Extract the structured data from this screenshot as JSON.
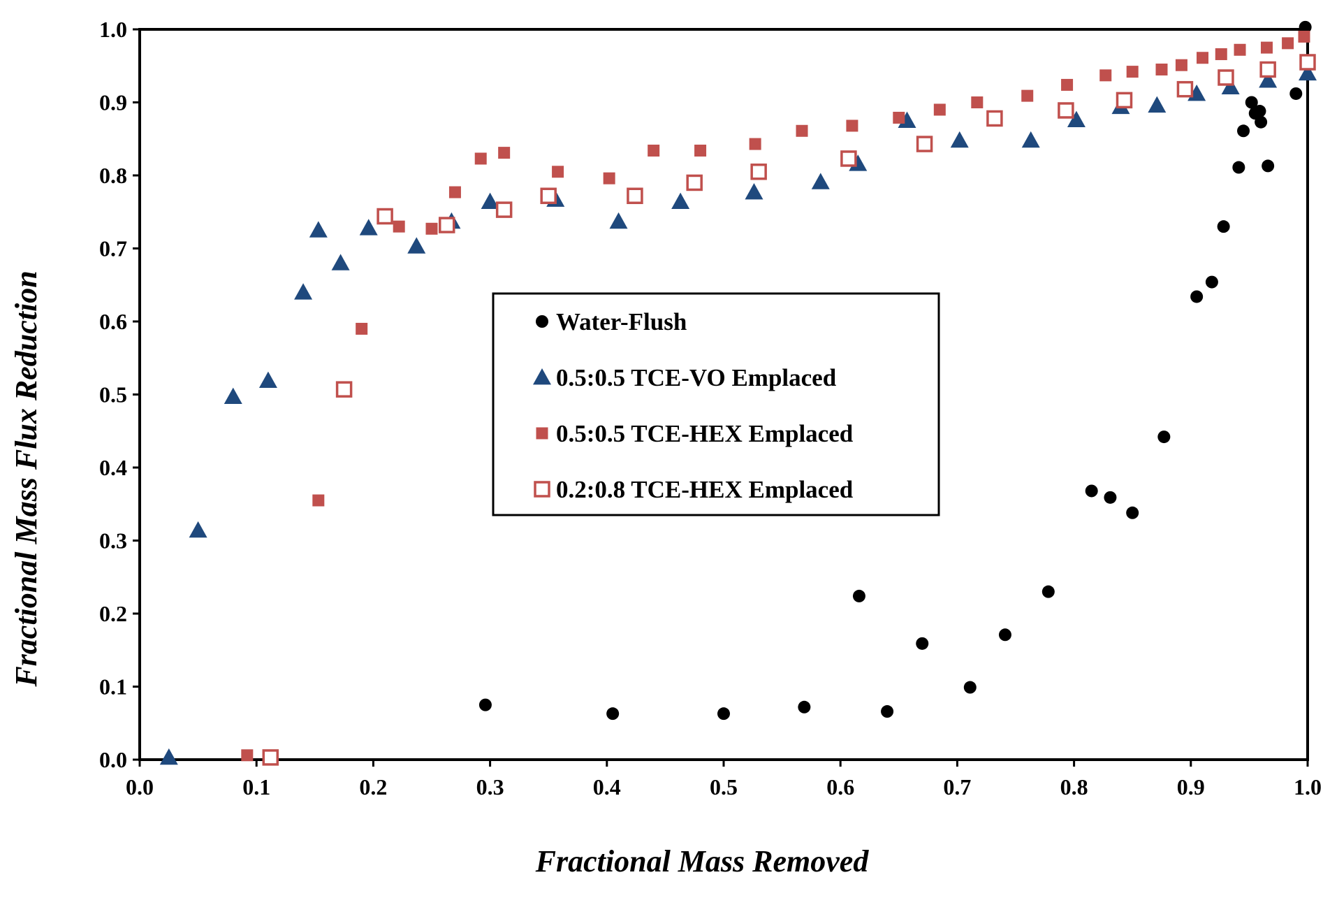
{
  "chart_data": {
    "type": "scatter",
    "title": "",
    "xlabel": "Fractional Mass Removed",
    "ylabel": "Fractional Mass Flux Reduction",
    "xlim": [
      0.0,
      1.0
    ],
    "ylim": [
      0.0,
      1.0
    ],
    "xticks": [
      "0.0",
      "0.1",
      "0.2",
      "0.3",
      "0.4",
      "0.5",
      "0.6",
      "0.7",
      "0.8",
      "0.9",
      "1.0"
    ],
    "yticks": [
      "0.0",
      "0.1",
      "0.2",
      "0.3",
      "0.4",
      "0.5",
      "0.6",
      "0.7",
      "0.8",
      "0.9",
      "1.0"
    ],
    "grid": false,
    "legend_position": "center",
    "series": [
      {
        "name": "Water-Flush",
        "marker": "circle-filled",
        "color": "#000000",
        "points": [
          [
            0.296,
            0.075
          ],
          [
            0.405,
            0.063
          ],
          [
            0.5,
            0.063
          ],
          [
            0.569,
            0.072
          ],
          [
            0.616,
            0.224
          ],
          [
            0.64,
            0.066
          ],
          [
            0.67,
            0.159
          ],
          [
            0.711,
            0.099
          ],
          [
            0.741,
            0.171
          ],
          [
            0.778,
            0.23
          ],
          [
            0.815,
            0.368
          ],
          [
            0.831,
            0.359
          ],
          [
            0.85,
            0.338
          ],
          [
            0.877,
            0.442
          ],
          [
            0.905,
            0.634
          ],
          [
            0.918,
            0.654
          ],
          [
            0.928,
            0.73
          ],
          [
            0.941,
            0.811
          ],
          [
            0.945,
            0.861
          ],
          [
            0.952,
            0.9
          ],
          [
            0.955,
            0.885
          ],
          [
            0.959,
            0.888
          ],
          [
            0.96,
            0.873
          ],
          [
            0.966,
            0.813
          ],
          [
            0.99,
            0.912
          ],
          [
            0.998,
            1.003
          ]
        ]
      },
      {
        "name": "0.5:0.5 TCE-VO Emplaced",
        "marker": "triangle-filled",
        "color": "#1f497d",
        "points": [
          [
            0.025,
            0.003
          ],
          [
            0.05,
            0.314
          ],
          [
            0.08,
            0.497
          ],
          [
            0.11,
            0.519
          ],
          [
            0.14,
            0.64
          ],
          [
            0.153,
            0.725
          ],
          [
            0.172,
            0.68
          ],
          [
            0.196,
            0.728
          ],
          [
            0.237,
            0.703
          ],
          [
            0.267,
            0.737
          ],
          [
            0.3,
            0.764
          ],
          [
            0.356,
            0.767
          ],
          [
            0.41,
            0.737
          ],
          [
            0.463,
            0.764
          ],
          [
            0.526,
            0.777
          ],
          [
            0.583,
            0.791
          ],
          [
            0.615,
            0.816
          ],
          [
            0.657,
            0.875
          ],
          [
            0.702,
            0.848
          ],
          [
            0.763,
            0.848
          ],
          [
            0.802,
            0.876
          ],
          [
            0.84,
            0.894
          ],
          [
            0.871,
            0.896
          ],
          [
            0.905,
            0.912
          ],
          [
            0.934,
            0.921
          ],
          [
            0.966,
            0.93
          ],
          [
            1.0,
            0.94
          ]
        ]
      },
      {
        "name": "0.5:0.5 TCE-HEX Emplaced",
        "marker": "square-filled",
        "color": "#c0504d",
        "points": [
          [
            0.092,
            0.006
          ],
          [
            0.153,
            0.355
          ],
          [
            0.19,
            0.59
          ],
          [
            0.222,
            0.73
          ],
          [
            0.25,
            0.727
          ],
          [
            0.27,
            0.777
          ],
          [
            0.292,
            0.823
          ],
          [
            0.312,
            0.831
          ],
          [
            0.358,
            0.805
          ],
          [
            0.402,
            0.796
          ],
          [
            0.44,
            0.834
          ],
          [
            0.48,
            0.834
          ],
          [
            0.527,
            0.843
          ],
          [
            0.567,
            0.861
          ],
          [
            0.61,
            0.868
          ],
          [
            0.65,
            0.879
          ],
          [
            0.685,
            0.89
          ],
          [
            0.717,
            0.9
          ],
          [
            0.76,
            0.909
          ],
          [
            0.794,
            0.924
          ],
          [
            0.827,
            0.937
          ],
          [
            0.85,
            0.942
          ],
          [
            0.875,
            0.945
          ],
          [
            0.892,
            0.951
          ],
          [
            0.91,
            0.961
          ],
          [
            0.926,
            0.966
          ],
          [
            0.942,
            0.972
          ],
          [
            0.965,
            0.975
          ],
          [
            0.983,
            0.981
          ],
          [
            0.997,
            0.99
          ]
        ]
      },
      {
        "name": "0.2:0.8 TCE-HEX Emplaced",
        "marker": "square-open",
        "color": "#c0504d",
        "points": [
          [
            0.112,
            0.003
          ],
          [
            0.175,
            0.507
          ],
          [
            0.21,
            0.744
          ],
          [
            0.263,
            0.732
          ],
          [
            0.312,
            0.753
          ],
          [
            0.35,
            0.772
          ],
          [
            0.424,
            0.772
          ],
          [
            0.475,
            0.79
          ],
          [
            0.53,
            0.805
          ],
          [
            0.607,
            0.823
          ],
          [
            0.672,
            0.843
          ],
          [
            0.732,
            0.878
          ],
          [
            0.793,
            0.889
          ],
          [
            0.843,
            0.903
          ],
          [
            0.895,
            0.918
          ],
          [
            0.93,
            0.934
          ],
          [
            0.966,
            0.945
          ],
          [
            1.0,
            0.955
          ]
        ]
      }
    ]
  }
}
